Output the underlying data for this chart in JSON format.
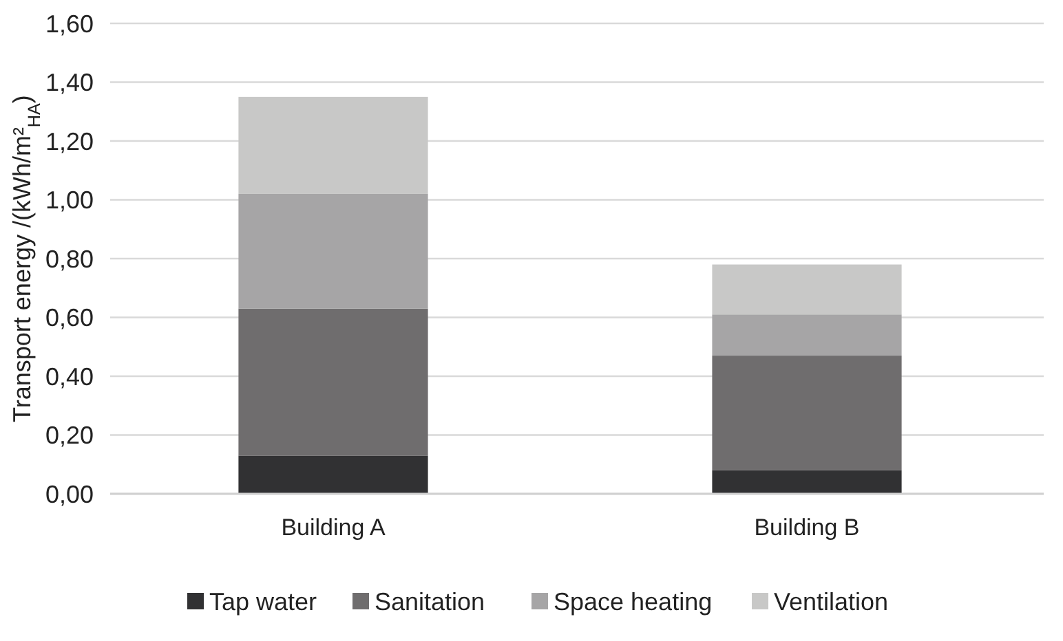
{
  "chart_data": {
    "type": "bar",
    "stacked": true,
    "ylabel": "Transport energy /(kWh/m²$_{HA}$)",
    "categories": [
      "Building A",
      "Building B"
    ],
    "series": [
      {
        "name": "Tap water",
        "color": "#313133",
        "values": [
          0.13,
          0.08
        ]
      },
      {
        "name": "Sanitation",
        "color": "#6f6d6e",
        "values": [
          0.5,
          0.39
        ]
      },
      {
        "name": "Space heating",
        "color": "#a6a5a6",
        "values": [
          0.39,
          0.14
        ]
      },
      {
        "name": "Ventilation",
        "color": "#c8c8c7",
        "values": [
          0.33,
          0.17
        ]
      }
    ],
    "ylim": [
      0,
      1.6
    ],
    "yticks": [
      {
        "value": 0,
        "label": "0,00"
      },
      {
        "value": 0.2,
        "label": "0,20"
      },
      {
        "value": 0.4,
        "label": "0,40"
      },
      {
        "value": 0.6,
        "label": "0,60"
      },
      {
        "value": 0.8,
        "label": "0,80"
      },
      {
        "value": 1.0,
        "label": "1,00"
      },
      {
        "value": 1.2,
        "label": "1,20"
      },
      {
        "value": 1.4,
        "label": "1,40"
      },
      {
        "value": 1.6,
        "label": "1,60"
      }
    ],
    "grid": "y",
    "legend": "bottom"
  }
}
